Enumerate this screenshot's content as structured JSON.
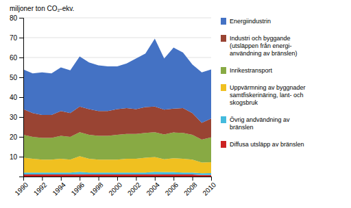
{
  "chart_data": {
    "type": "area",
    "stacked": true,
    "y_label": "miljoner ton CO₂-ekv.",
    "x": [
      1990,
      1991,
      1992,
      1993,
      1994,
      1995,
      1996,
      1997,
      1998,
      1999,
      2000,
      2001,
      2002,
      2003,
      2004,
      2005,
      2006,
      2007,
      2008,
      2009,
      2010
    ],
    "series": [
      {
        "name": "Diffusa utsläpp av bränslen",
        "color": "#cc2222",
        "values": [
          1.0,
          1.0,
          1.0,
          1.0,
          1.0,
          1.0,
          1.1,
          1.0,
          1.0,
          1.0,
          1.0,
          1.0,
          1.0,
          1.0,
          1.1,
          1.0,
          1.0,
          1.0,
          1.0,
          0.8,
          0.8
        ]
      },
      {
        "name": "Övrig andvändning av\nbränslen",
        "color": "#44bbdd",
        "values": [
          1.0,
          1.0,
          1.0,
          1.0,
          1.0,
          1.0,
          1.2,
          1.0,
          1.0,
          1.0,
          1.0,
          1.0,
          1.0,
          1.0,
          1.2,
          1.2,
          1.2,
          1.0,
          1.0,
          0.8,
          0.9
        ]
      },
      {
        "name": "Uppvärmning av byggnader\nsamtfiskerinäring, lant- och\nskogsbruk",
        "color": "#f0c020",
        "values": [
          7.5,
          7.0,
          6.5,
          6.5,
          7.0,
          6.5,
          8.0,
          7.0,
          6.5,
          6.5,
          6.5,
          7.0,
          7.0,
          7.5,
          7.5,
          6.5,
          7.0,
          7.0,
          6.5,
          5.5,
          5.5
        ]
      },
      {
        "name": "Inrikestransport",
        "color": "#88aa44",
        "values": [
          11.5,
          11.0,
          11.0,
          11.0,
          11.5,
          11.5,
          12.0,
          12.0,
          12.0,
          12.0,
          12.5,
          12.5,
          12.5,
          12.5,
          12.5,
          12.5,
          13.0,
          13.0,
          12.5,
          11.5,
          12.5
        ]
      },
      {
        "name": "Industri och byggande\n(utsläppen från energi-\nanvändning av bränslen)",
        "color": "#994433",
        "values": [
          13.0,
          12.0,
          11.5,
          11.5,
          12.5,
          12.0,
          13.0,
          13.0,
          12.5,
          12.5,
          13.0,
          13.0,
          12.5,
          13.0,
          13.0,
          12.5,
          12.0,
          12.5,
          11.0,
          8.5,
          9.5
        ]
      },
      {
        "name": "Energiindustrin",
        "color": "#4472c4",
        "values": [
          20.0,
          20.0,
          21.5,
          21.0,
          22.0,
          21.5,
          25.2,
          23.5,
          23.0,
          22.5,
          21.5,
          22.5,
          25.5,
          27.0,
          34.2,
          25.8,
          30.8,
          28.0,
          24.5,
          25.4,
          24.8
        ]
      }
    ],
    "xlim": [
      1990,
      2010
    ],
    "xticks": [
      1990,
      1992,
      1994,
      1996,
      1998,
      2000,
      2002,
      2004,
      2006,
      2008,
      2010
    ],
    "ylim": [
      0,
      80
    ],
    "yticks": [
      {
        "value": 0,
        "label": null
      },
      10,
      20,
      30,
      40,
      50,
      60,
      70,
      80
    ],
    "grid": true,
    "legend": "right"
  }
}
